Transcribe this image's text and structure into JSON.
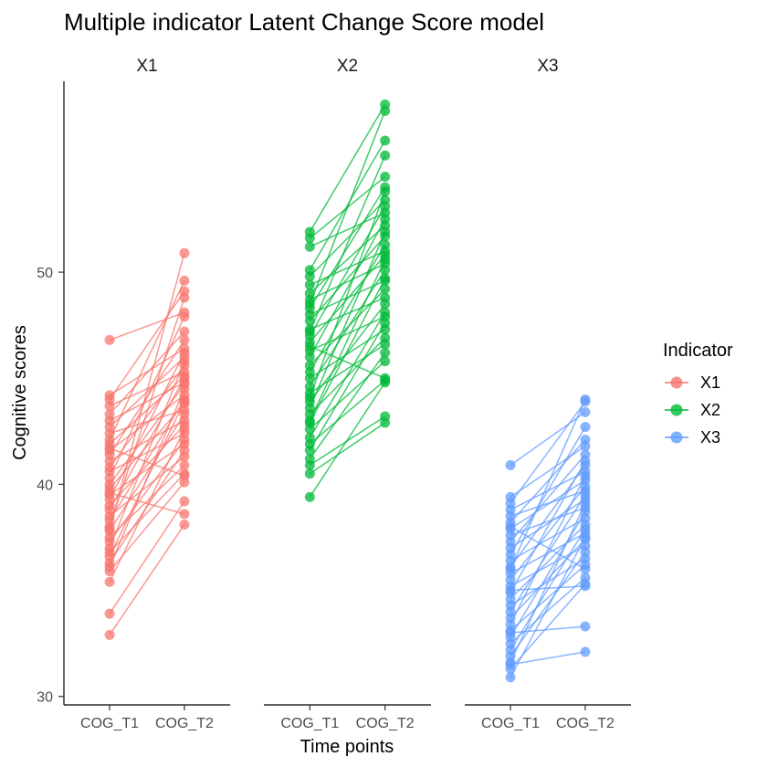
{
  "chart_data": {
    "type": "line",
    "title": "Multiple indicator Latent Change Score model",
    "xlabel": "Time points",
    "ylabel": "Cognitive scores",
    "ylim": [
      29.6,
      59.0
    ],
    "yticks": [
      30,
      40,
      50
    ],
    "grid": false,
    "legend": {
      "title": "Indicator",
      "placement": "right"
    },
    "panels": [
      {
        "name": "X1",
        "color": "#F8766D",
        "categories": [
          "COG_T1",
          "COG_T2"
        ],
        "pairs": [
          [
            46.8,
            48.1
          ],
          [
            44.2,
            46.4
          ],
          [
            44.0,
            49.1
          ],
          [
            43.7,
            45.3
          ],
          [
            43.3,
            47.2
          ],
          [
            43.0,
            44.8
          ],
          [
            42.7,
            46.0
          ],
          [
            42.4,
            43.5
          ],
          [
            42.1,
            49.6
          ],
          [
            41.9,
            45.1
          ],
          [
            41.6,
            44.2
          ],
          [
            41.4,
            46.8
          ],
          [
            41.1,
            43.0
          ],
          [
            40.8,
            45.6
          ],
          [
            40.6,
            42.4
          ],
          [
            40.3,
            47.9
          ],
          [
            40.0,
            44.7
          ],
          [
            39.8,
            43.8
          ],
          [
            39.5,
            41.9
          ],
          [
            39.3,
            46.2
          ],
          [
            39.0,
            42.8
          ],
          [
            38.8,
            45.0
          ],
          [
            38.5,
            41.3
          ],
          [
            38.3,
            44.0
          ],
          [
            38.0,
            48.8
          ],
          [
            37.8,
            43.3
          ],
          [
            37.5,
            40.9
          ],
          [
            37.3,
            42.1
          ],
          [
            37.0,
            45.8
          ],
          [
            36.8,
            40.5
          ],
          [
            36.6,
            43.9
          ],
          [
            36.3,
            41.6
          ],
          [
            36.1,
            44.5
          ],
          [
            35.9,
            40.1
          ],
          [
            35.4,
            42.6
          ],
          [
            33.9,
            39.2
          ],
          [
            32.9,
            38.1
          ],
          [
            37.9,
            50.9
          ],
          [
            39.6,
            38.6
          ],
          [
            41.7,
            40.4
          ]
        ]
      },
      {
        "name": "X2",
        "color": "#00BA38",
        "categories": [
          "COG_T1",
          "COG_T2"
        ],
        "pairs": [
          [
            51.9,
            57.9
          ],
          [
            51.6,
            54.5
          ],
          [
            51.2,
            52.8
          ],
          [
            50.1,
            56.2
          ],
          [
            49.8,
            53.4
          ],
          [
            49.4,
            51.0
          ],
          [
            49.0,
            52.2
          ],
          [
            48.7,
            50.4
          ],
          [
            48.3,
            54.0
          ],
          [
            48.0,
            49.6
          ],
          [
            47.7,
            51.7
          ],
          [
            47.3,
            48.8
          ],
          [
            47.0,
            53.1
          ],
          [
            46.7,
            50.8
          ],
          [
            46.3,
            47.9
          ],
          [
            46.0,
            52.5
          ],
          [
            45.6,
            49.2
          ],
          [
            45.3,
            51.3
          ],
          [
            45.0,
            47.3
          ],
          [
            44.6,
            50.1
          ],
          [
            44.3,
            46.6
          ],
          [
            43.9,
            48.5
          ],
          [
            43.6,
            51.9
          ],
          [
            43.3,
            46.9
          ],
          [
            42.9,
            49.7
          ],
          [
            42.6,
            45.8
          ],
          [
            42.2,
            48.1
          ],
          [
            41.9,
            44.9
          ],
          [
            41.6,
            47.6
          ],
          [
            41.2,
            46.2
          ],
          [
            40.9,
            43.2
          ],
          [
            40.5,
            42.9
          ],
          [
            39.4,
            44.8
          ],
          [
            48.5,
            57.6
          ],
          [
            47.2,
            55.5
          ],
          [
            44.1,
            53.8
          ],
          [
            43.0,
            50.6
          ],
          [
            46.5,
            45.0
          ]
        ]
      },
      {
        "name": "X3",
        "color": "#619CFF",
        "categories": [
          "COG_T1",
          "COG_T2"
        ],
        "pairs": [
          [
            40.9,
            43.4
          ],
          [
            39.4,
            41.8
          ],
          [
            39.1,
            43.9
          ],
          [
            38.8,
            40.6
          ],
          [
            38.5,
            39.7
          ],
          [
            38.2,
            42.1
          ],
          [
            37.9,
            40.2
          ],
          [
            37.6,
            38.9
          ],
          [
            37.3,
            41.4
          ],
          [
            37.0,
            39.3
          ],
          [
            36.7,
            42.7
          ],
          [
            36.4,
            38.4
          ],
          [
            36.1,
            40.9
          ],
          [
            35.8,
            37.7
          ],
          [
            35.5,
            39.9
          ],
          [
            35.2,
            37.1
          ],
          [
            34.9,
            41.1
          ],
          [
            34.6,
            38.1
          ],
          [
            34.3,
            36.5
          ],
          [
            34.0,
            39.5
          ],
          [
            33.7,
            37.4
          ],
          [
            33.4,
            40.4
          ],
          [
            33.1,
            36.2
          ],
          [
            32.8,
            38.7
          ],
          [
            32.5,
            35.6
          ],
          [
            32.2,
            37.9
          ],
          [
            31.9,
            36.8
          ],
          [
            31.6,
            39.1
          ],
          [
            31.3,
            35.3
          ],
          [
            30.9,
            37.5
          ],
          [
            36.0,
            44.0
          ],
          [
            33.0,
            33.3
          ],
          [
            31.5,
            32.1
          ],
          [
            35.0,
            35.2
          ],
          [
            38.0,
            36.0
          ]
        ]
      }
    ]
  }
}
